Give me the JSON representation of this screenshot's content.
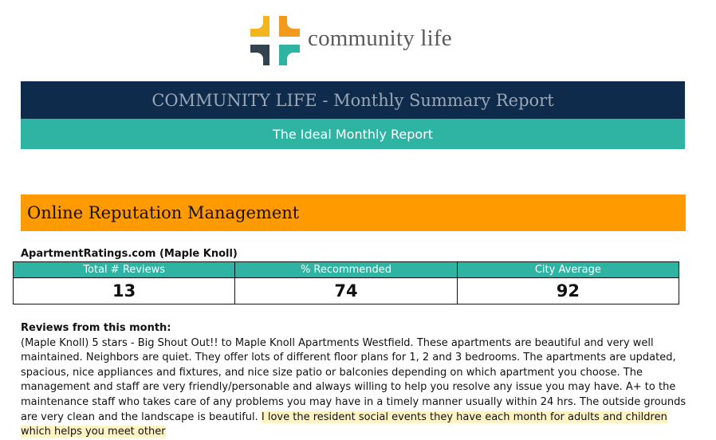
{
  "logo": {
    "text": "community life",
    "colors": {
      "gold": "#f2b51c",
      "orange": "#f39a1c",
      "navy": "#34414e",
      "teal": "#2fb3a3"
    }
  },
  "header": {
    "title": "COMMUNITY LIFE - Monthly Summary Report",
    "subtitle": "The Ideal Monthly Report"
  },
  "section": {
    "title": "Online Reputation Management"
  },
  "ratings": {
    "source": "ApartmentRatings.com (Maple Knoll)",
    "columns": [
      "Total # Reviews",
      "% Recommended",
      "City Average"
    ],
    "values": [
      "13",
      "74",
      "92"
    ]
  },
  "reviews": {
    "heading": "Reviews from this month:",
    "body": "(Maple Knoll) 5 stars - Big Shout Out!! to Maple Knoll Apartments Westfield. These apartments are beautiful and very well maintained. Neighbors are quiet. They offer lots of different floor plans for 1, 2 and 3 bedrooms. The apartments are updated, spacious, nice appliances and fixtures, and nice size patio or balconies depending on which apartment you choose. The management and staff are very friendly/personable and always willing to help you resolve any issue you may have. A+ to the maintenance staff who takes care of any problems you may have in a timely manner usually within 24 hrs. The outside grounds are very clean and the landscape is beautiful. ",
    "highlight": "I love the resident social events they have each month for adults and children which helps you meet other"
  },
  "colors": {
    "navy": "#0f2b4c",
    "teal": "#2fb3a3",
    "orange": "#ff9a00",
    "highlight": "#fff3c4"
  }
}
